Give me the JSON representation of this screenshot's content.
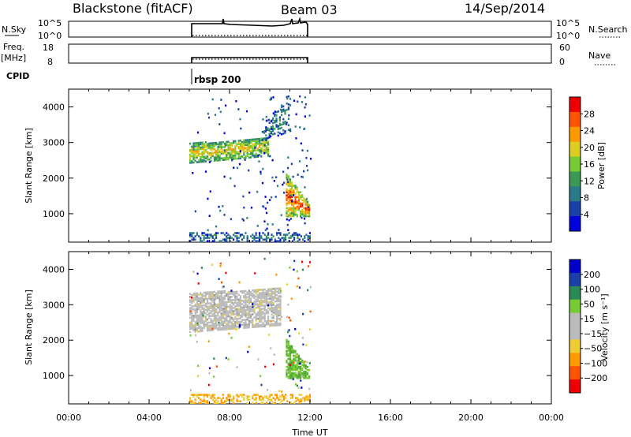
{
  "header": {
    "station": "Blackstone (fitACF)",
    "beam": "Beam 03",
    "date": "14/Sep/2014"
  },
  "noise_panel": {
    "left_label": "N.Sky",
    "left_ticks": [
      "10^5",
      "10^0"
    ],
    "right_ticks": [
      "10^5",
      "10^0"
    ],
    "right_label": "N.Search"
  },
  "freq_panel": {
    "left_label_1": "Freq.",
    "left_label_2": "[MHz]",
    "left_ticks": [
      "18",
      "8"
    ],
    "right_ticks": [
      "60",
      "0"
    ],
    "right_label": "Nave"
  },
  "cpid": {
    "label": "CPID",
    "program": "rbsp 200"
  },
  "colors": {
    "power_scale": [
      "#0000dd",
      "#1a3faa",
      "#2a7a8a",
      "#3a9a55",
      "#77cc33",
      "#ddcc22",
      "#ff9900",
      "#ff5500",
      "#ee0000"
    ],
    "velocity_scale": [
      "#ee0000",
      "#ff5500",
      "#ff9a00",
      "#eecc33",
      "#bbbbbb",
      "#bbbbbb",
      "#77cc33",
      "#2a8a55",
      "#1a3faa",
      "#0000cc"
    ]
  },
  "chart_data": [
    {
      "type": "heatmap",
      "name": "power",
      "ylabel": "Slant Range [km]",
      "yticks": [
        "1000",
        "2000",
        "3000",
        "4000"
      ],
      "ylim": [
        200,
        4500
      ],
      "xlim": [
        0,
        24
      ],
      "colorbar": {
        "label": "Power [dB]",
        "ticks": [
          "4",
          "8",
          "12",
          "16",
          "20",
          "24",
          "28"
        ],
        "range": [
          0,
          32
        ]
      },
      "features": [
        {
          "t0": 6.0,
          "t1": 9.9,
          "r0": 2400,
          "r1": 2950,
          "level": 0.55
        },
        {
          "t0": 9.6,
          "t1": 11.0,
          "r0": 3000,
          "r1": 4100,
          "level": 0.25
        },
        {
          "t0": 10.8,
          "t1": 12.0,
          "r0": 900,
          "r1": 2100,
          "level": 0.75
        },
        {
          "t0": 6.0,
          "t1": 12.0,
          "r0": 200,
          "r1": 450,
          "level": 0.2
        }
      ]
    },
    {
      "type": "heatmap",
      "name": "velocity",
      "ylabel": "Slant Range [km]",
      "yticks": [
        "1000",
        "2000",
        "3000",
        "4000"
      ],
      "ylim": [
        200,
        4500
      ],
      "xlim": [
        0,
        24
      ],
      "xticks": [
        "00:00",
        "04:00",
        "08:00",
        "12:00",
        "16:00",
        "20:00",
        "00:00"
      ],
      "xlabel": "Time UT",
      "colorbar": {
        "label": "Velocity [m s⁻¹]",
        "ticks": [
          "200",
          "100",
          "50",
          "15",
          "−15",
          "−50",
          "−100",
          "−200"
        ]
      },
      "features": [
        {
          "t0": 6.0,
          "t1": 10.5,
          "r0": 2200,
          "r1": 3300,
          "value": 0
        },
        {
          "t0": 10.8,
          "t1": 12.0,
          "r0": 900,
          "r1": 2000,
          "value": 40
        },
        {
          "t0": 6.0,
          "t1": 12.0,
          "r0": 200,
          "r1": 450,
          "value": -30
        }
      ]
    }
  ]
}
